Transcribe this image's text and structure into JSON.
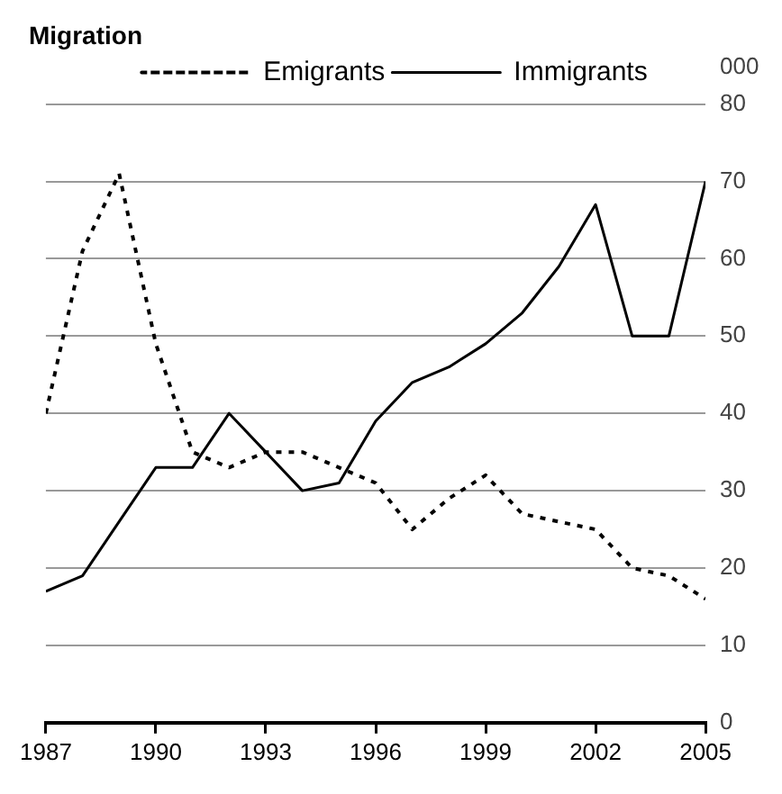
{
  "chart_data": {
    "type": "line",
    "title": "Migration",
    "ylabel": "000",
    "x": [
      1987,
      1988,
      1989,
      1990,
      1991,
      1992,
      1993,
      1994,
      1995,
      1996,
      1997,
      1998,
      1999,
      2000,
      2001,
      2002,
      2003,
      2004,
      2005
    ],
    "series": [
      {
        "name": "Emigrants",
        "color": "#000000",
        "line_style": "dotted",
        "values": [
          40,
          61,
          71,
          49,
          35,
          33,
          35,
          35,
          33,
          31,
          25,
          29,
          32,
          27,
          26,
          25,
          20,
          19,
          16
        ]
      },
      {
        "name": "Immigrants",
        "color": "#000000",
        "line_style": "solid",
        "values": [
          17,
          19,
          26,
          33,
          33,
          40,
          35,
          30,
          31,
          39,
          44,
          46,
          49,
          53,
          59,
          67,
          50,
          50,
          70
        ]
      }
    ],
    "xlim": [
      1987,
      2005
    ],
    "xticks": [
      1987,
      1990,
      1993,
      1996,
      1999,
      2002,
      2005
    ],
    "ylim": [
      0,
      80
    ],
    "yticks": [
      0,
      10,
      20,
      30,
      40,
      50,
      60,
      70,
      80
    ],
    "grid": "y",
    "legend": "top",
    "marker": "none"
  }
}
